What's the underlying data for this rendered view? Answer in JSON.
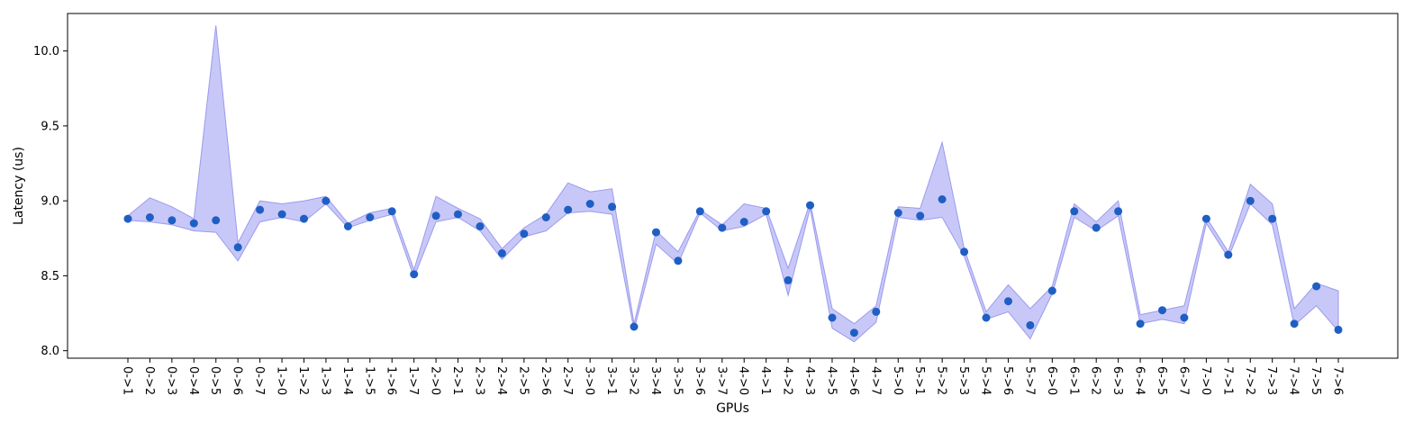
{
  "chart_data": {
    "type": "line",
    "xlabel": "GPUs",
    "ylabel": "Latency (us)",
    "ylim": [
      7.95,
      10.25
    ],
    "yticks": [
      8.0,
      8.5,
      9.0,
      9.5,
      10.0
    ],
    "grid": false,
    "categories": [
      "0->1",
      "0->2",
      "0->3",
      "0->4",
      "0->5",
      "0->6",
      "0->7",
      "1->0",
      "1->2",
      "1->3",
      "1->4",
      "1->5",
      "1->6",
      "1->7",
      "2->0",
      "2->1",
      "2->3",
      "2->4",
      "2->5",
      "2->6",
      "2->7",
      "3->0",
      "3->1",
      "3->2",
      "3->4",
      "3->5",
      "3->6",
      "3->7",
      "4->0",
      "4->1",
      "4->2",
      "4->3",
      "4->5",
      "4->6",
      "4->7",
      "5->0",
      "5->1",
      "5->2",
      "5->3",
      "5->4",
      "5->6",
      "5->7",
      "6->0",
      "6->1",
      "6->2",
      "6->3",
      "6->4",
      "6->5",
      "6->7",
      "7->0",
      "7->1",
      "7->2",
      "7->3",
      "7->4",
      "7->5",
      "7->6"
    ],
    "series": [
      {
        "kind": "points",
        "color": "#1f5fc4",
        "values": [
          8.88,
          8.89,
          8.87,
          8.85,
          8.87,
          8.69,
          8.94,
          8.91,
          8.88,
          9.0,
          8.83,
          8.89,
          8.93,
          8.51,
          8.9,
          8.91,
          8.83,
          8.65,
          8.78,
          8.89,
          8.94,
          8.98,
          8.96,
          8.16,
          8.79,
          8.6,
          8.93,
          8.82,
          8.86,
          8.93,
          8.47,
          8.97,
          8.22,
          8.12,
          8.26,
          8.92,
          8.9,
          9.01,
          8.66,
          8.22,
          8.33,
          8.17,
          8.4,
          8.93,
          8.82,
          8.93,
          8.18,
          8.27,
          8.22,
          8.88,
          8.64,
          9.0,
          8.88,
          8.18,
          8.43,
          8.14
        ]
      },
      {
        "kind": "band",
        "color": "#c8c8f8",
        "edge_color": "#9a9aef",
        "upper": [
          8.9,
          9.02,
          8.96,
          8.88,
          10.17,
          8.72,
          9.0,
          8.98,
          9.0,
          9.03,
          8.85,
          8.92,
          8.95,
          8.54,
          9.03,
          8.95,
          8.88,
          8.68,
          8.82,
          8.91,
          9.12,
          9.06,
          9.08,
          8.18,
          8.8,
          8.66,
          8.94,
          8.84,
          8.98,
          8.95,
          8.55,
          8.99,
          8.28,
          8.18,
          8.3,
          8.96,
          8.95,
          9.39,
          8.68,
          8.26,
          8.44,
          8.28,
          8.43,
          8.98,
          8.86,
          9.0,
          8.24,
          8.27,
          8.3,
          8.89,
          8.66,
          9.11,
          8.98,
          8.28,
          8.45,
          8.4
        ],
        "lower": [
          8.87,
          8.86,
          8.84,
          8.8,
          8.79,
          8.6,
          8.86,
          8.89,
          8.86,
          8.98,
          8.82,
          8.87,
          8.91,
          8.49,
          8.86,
          8.89,
          8.8,
          8.61,
          8.76,
          8.8,
          8.92,
          8.93,
          8.91,
          8.14,
          8.71,
          8.58,
          8.92,
          8.8,
          8.83,
          8.91,
          8.37,
          8.95,
          8.15,
          8.06,
          8.19,
          8.89,
          8.87,
          8.89,
          8.63,
          8.21,
          8.26,
          8.08,
          8.38,
          8.89,
          8.8,
          8.9,
          8.18,
          8.21,
          8.18,
          8.85,
          8.62,
          8.98,
          8.84,
          8.17,
          8.3,
          8.13
        ]
      }
    ]
  }
}
